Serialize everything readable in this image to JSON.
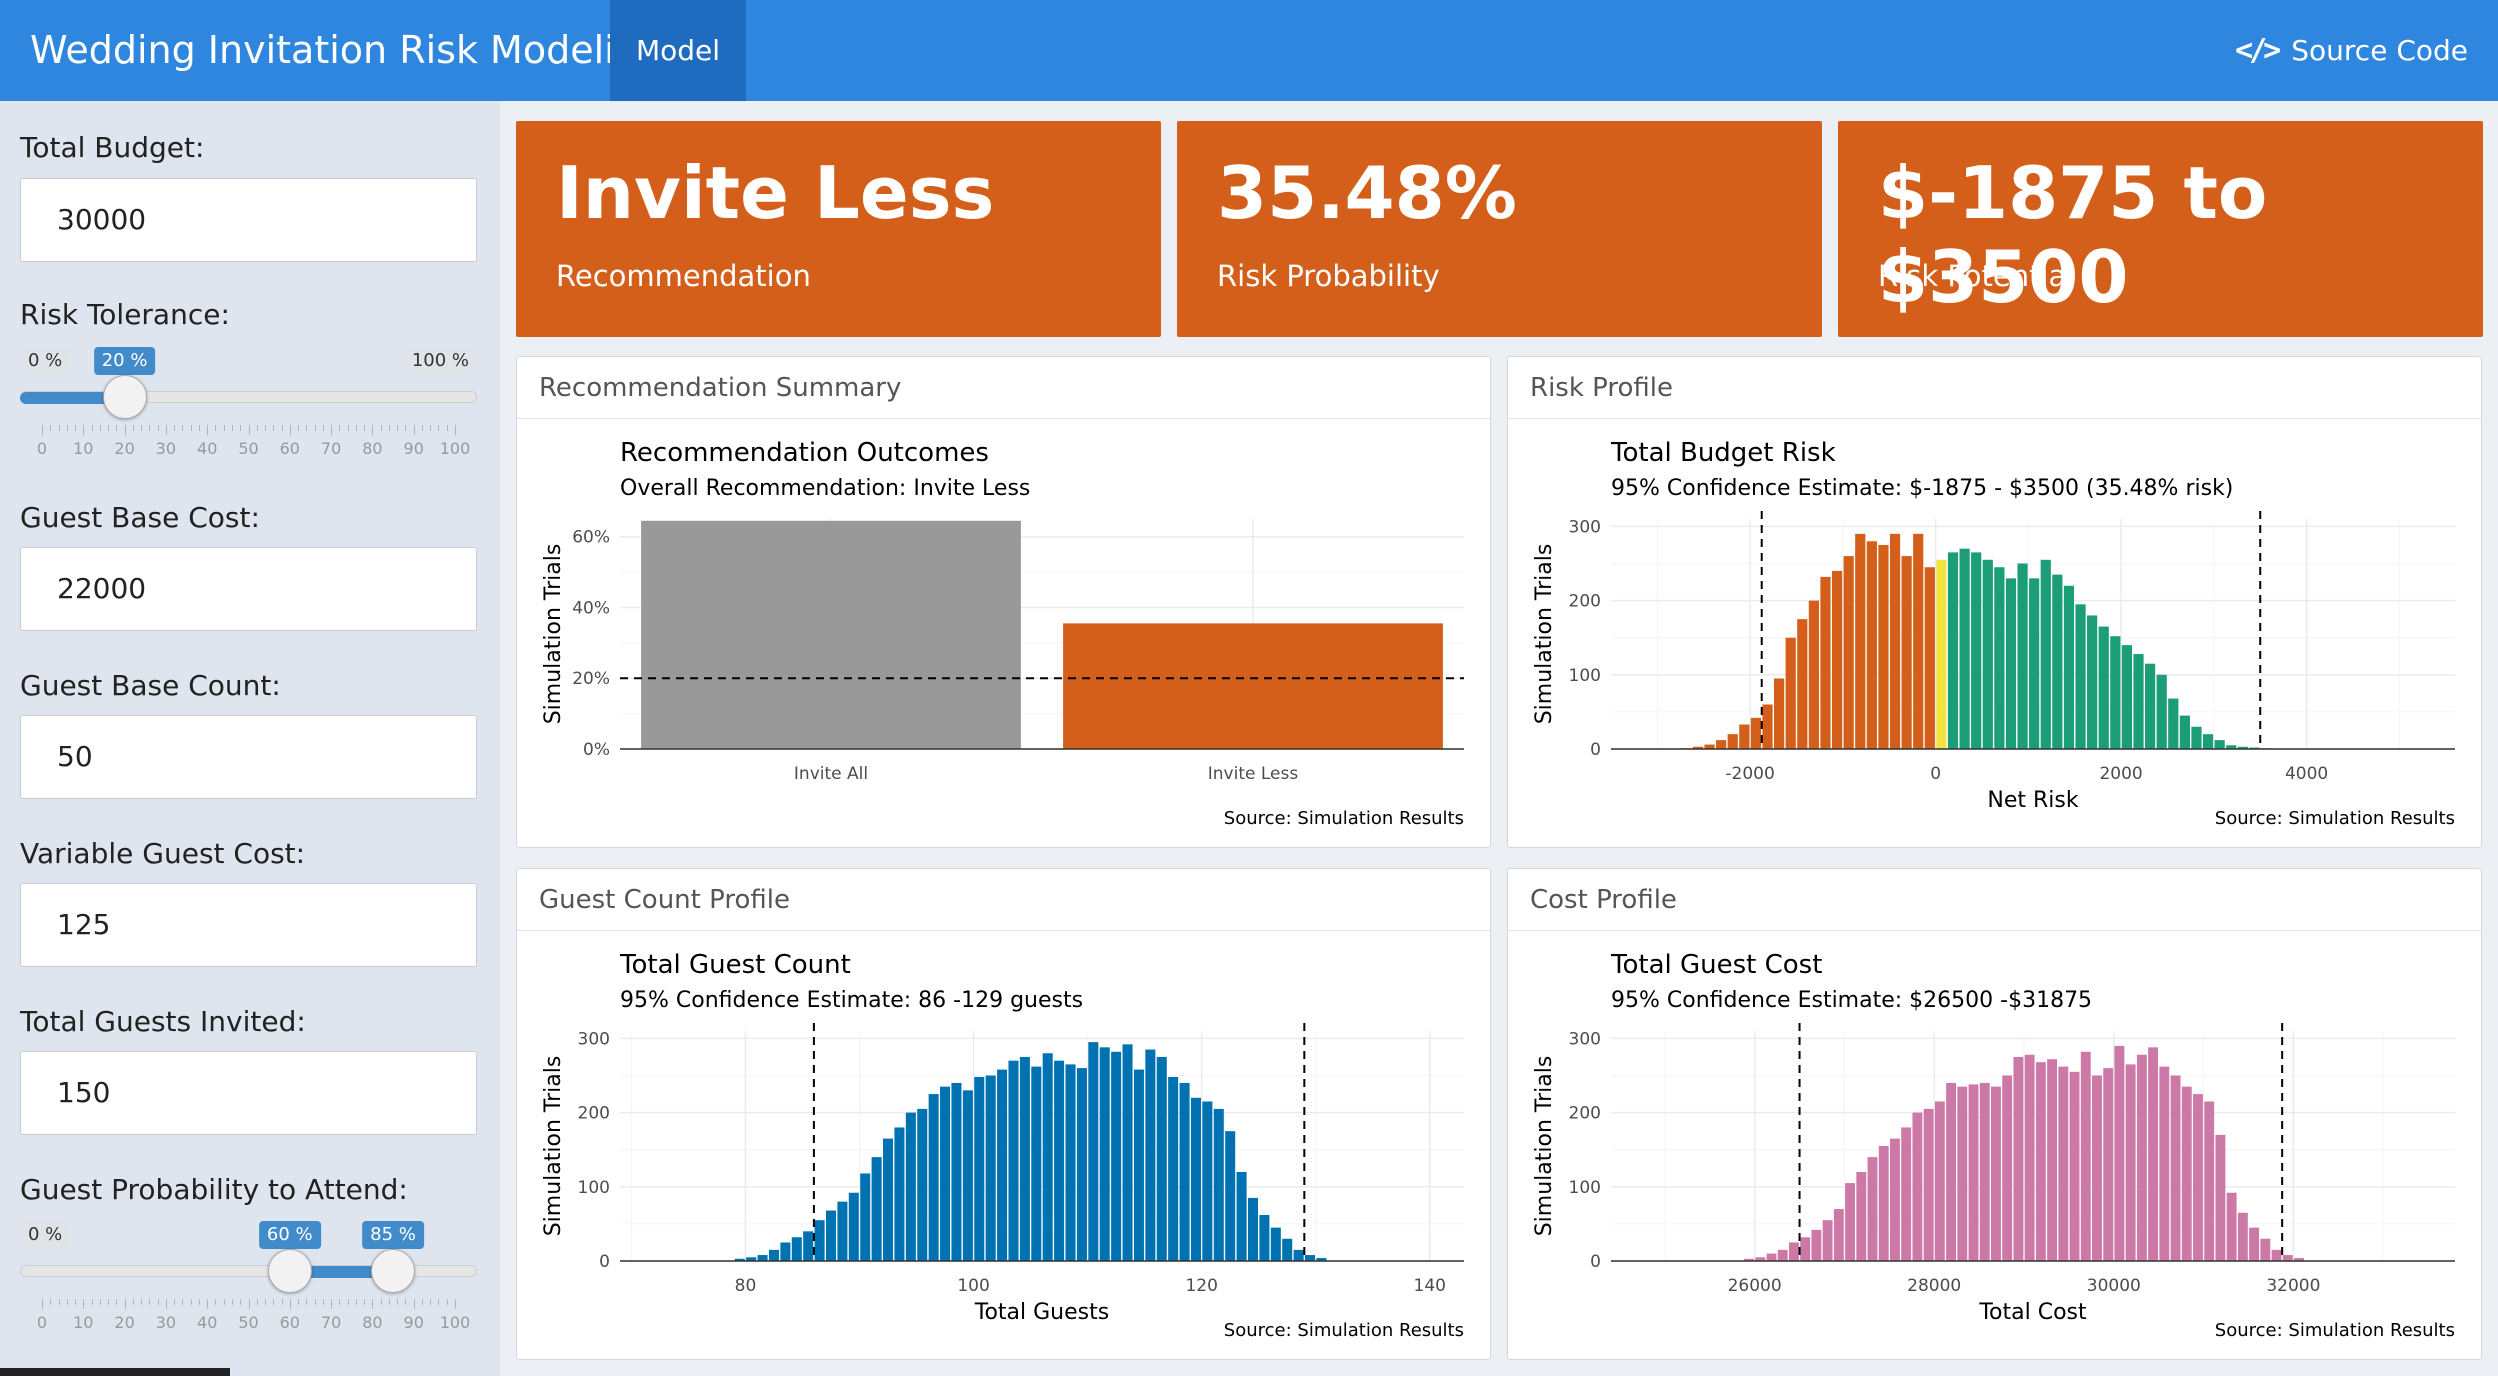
{
  "navbar": {
    "title": "Wedding Invitation Risk Modeling",
    "tab": "Model",
    "source_label": "Source Code",
    "source_icon": "code-icon"
  },
  "sidebar": {
    "total_budget_label": "Total Budget:",
    "total_budget": "30000",
    "risk_tolerance_label": "Risk Tolerance:",
    "risk_slider": {
      "min": 0,
      "max": 100,
      "value": 20,
      "min_label": "0 %",
      "max_label": "100 %",
      "value_label": "20 %",
      "ticks": [
        "0",
        "10",
        "20",
        "30",
        "40",
        "50",
        "60",
        "70",
        "80",
        "90",
        "100"
      ]
    },
    "guest_base_cost_label": "Guest Base Cost:",
    "guest_base_cost": "22000",
    "guest_base_count_label": "Guest Base Count:",
    "guest_base_count": "50",
    "variable_guest_cost_label": "Variable Guest Cost:",
    "variable_guest_cost": "125",
    "total_guests_invited_label": "Total Guests Invited:",
    "total_guests_invited": "150",
    "attend_prob_label": "Guest Probability to Attend:",
    "attend_slider": {
      "min": 0,
      "max": 100,
      "from": 60,
      "to": 85,
      "min_label": "0 %",
      "from_label": "60 %",
      "to_label": "85 %",
      "ticks": [
        "0",
        "10",
        "20",
        "30",
        "40",
        "50",
        "60",
        "70",
        "80",
        "90",
        "100"
      ]
    }
  },
  "value_boxes": [
    {
      "value": "Invite Less",
      "subtitle": "Recommendation"
    },
    {
      "value": "35.48%",
      "subtitle": "Risk Probability"
    },
    {
      "value": "$-1875 to $3500",
      "subtitle": "Risk Potential"
    }
  ],
  "panels": {
    "recommendation": {
      "header": "Recommendation Summary",
      "chart_data": {
        "type": "bar",
        "title": "Recommendation Outcomes",
        "subtitle": "Overall Recommendation: Invite Less",
        "ylabel": "Simulation Trials",
        "categories": [
          "Invite All",
          "Invite Less"
        ],
        "values": [
          64.5,
          35.5
        ],
        "colors": [
          "#999999",
          "#d35f1a"
        ],
        "ylim": [
          0,
          65
        ],
        "yticks": [
          0,
          20,
          40,
          60
        ],
        "ytick_labels": [
          "0%",
          "20%",
          "40%",
          "60%"
        ],
        "reference_line": 20,
        "caption": "Source: Simulation Results"
      }
    },
    "risk": {
      "header": "Risk Profile",
      "chart_data": {
        "type": "bar",
        "title": "Total Budget Risk",
        "subtitle": "95% Confidence Estimate: $-1875 - $3500 (35.48% risk)",
        "xlabel": "Net Risk",
        "ylabel": "Simulation Trials",
        "xlim": [
          -3500,
          5600
        ],
        "ylim": [
          0,
          310
        ],
        "xticks": [
          -2000,
          0,
          2000,
          4000
        ],
        "xtick_labels": [
          "-2000",
          "0",
          "2000",
          "4000"
        ],
        "yticks": [
          0,
          100,
          200,
          300
        ],
        "ci": [
          -1875,
          3500
        ],
        "bin_start": -2750,
        "bin_width": 125,
        "values": [
          1,
          3,
          6,
          12,
          20,
          33,
          42,
          60,
          95,
          150,
          175,
          200,
          232,
          240,
          260,
          290,
          280,
          275,
          290,
          260,
          290,
          245,
          255,
          265,
          270,
          265,
          255,
          245,
          230,
          250,
          230,
          255,
          235,
          220,
          195,
          180,
          165,
          152,
          140,
          128,
          115,
          100,
          68,
          45,
          30,
          20,
          12,
          5,
          3,
          2,
          1
        ],
        "colors": {
          "negative": "#d35f1a",
          "zero": "#f0e442",
          "positive": "#1b9e77"
        },
        "caption": "Source: Simulation Results"
      }
    },
    "guests": {
      "header": "Guest Count Profile",
      "chart_data": {
        "type": "bar",
        "title": "Total Guest Count",
        "subtitle": "95% Confidence Estimate: 86 -129 guests",
        "xlabel": "Total Guests",
        "ylabel": "Simulation Trials",
        "xlim": [
          69,
          143
        ],
        "ylim": [
          0,
          310
        ],
        "xticks": [
          80,
          100,
          120,
          140
        ],
        "xtick_labels": [
          "80",
          "100",
          "120",
          "140"
        ],
        "yticks": [
          0,
          100,
          200,
          300
        ],
        "ci": [
          86,
          129
        ],
        "bin_start": 79,
        "bin_width": 1,
        "values": [
          3,
          5,
          8,
          15,
          25,
          32,
          40,
          55,
          68,
          80,
          92,
          118,
          140,
          165,
          180,
          200,
          205,
          225,
          235,
          240,
          230,
          248,
          250,
          258,
          270,
          275,
          262,
          280,
          270,
          265,
          260,
          295,
          288,
          282,
          292,
          258,
          285,
          275,
          248,
          240,
          220,
          215,
          205,
          175,
          120,
          85,
          62,
          45,
          30,
          15,
          8,
          4
        ],
        "color": "#0072b2",
        "caption": "Source: Simulation Results"
      }
    },
    "cost": {
      "header": "Cost Profile",
      "chart_data": {
        "type": "bar",
        "title": "Total Guest Cost",
        "subtitle": "95% Confidence Estimate: $26500 -$31875",
        "xlabel": "Total Cost",
        "ylabel": "Simulation Trials",
        "xlim": [
          24400,
          33800
        ],
        "ylim": [
          0,
          310
        ],
        "xticks": [
          26000,
          28000,
          30000,
          32000
        ],
        "xtick_labels": [
          "26000",
          "28000",
          "30000",
          "32000"
        ],
        "yticks": [
          0,
          100,
          200,
          300
        ],
        "ci": [
          26500,
          31875
        ],
        "bin_start": 25875,
        "bin_width": 125,
        "values": [
          3,
          5,
          10,
          15,
          25,
          32,
          42,
          55,
          70,
          105,
          120,
          140,
          155,
          165,
          180,
          200,
          205,
          215,
          240,
          235,
          238,
          240,
          235,
          250,
          275,
          278,
          268,
          272,
          262,
          255,
          282,
          250,
          260,
          290,
          265,
          278,
          288,
          262,
          250,
          235,
          225,
          215,
          170,
          92,
          65,
          45,
          30,
          15,
          8,
          4
        ],
        "color": "#cc79a7",
        "caption": "Source: Simulation Results"
      }
    }
  }
}
